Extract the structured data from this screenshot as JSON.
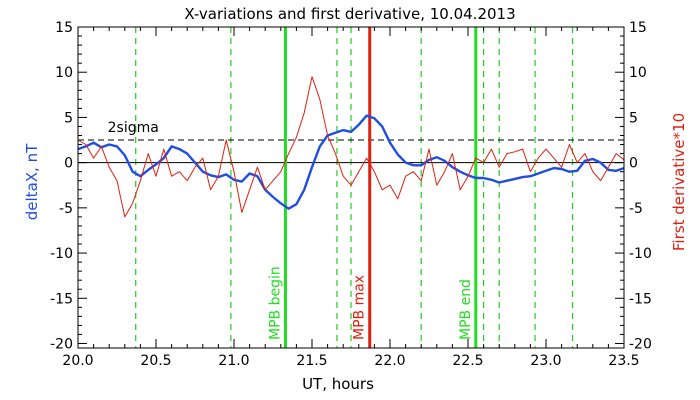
{
  "chart_data": {
    "type": "line",
    "title": "X-variations and first derivative, 10.04.2013",
    "xlabel": "UT, hours",
    "ylabel_left": "deltaX, nT",
    "ylabel_right": "First derivative*10",
    "xlim": [
      20.0,
      23.5
    ],
    "ylim": [
      -20.5,
      15
    ],
    "x_ticks": [
      "20.0",
      "20.5",
      "21.0",
      "21.5",
      "22.0",
      "22.5",
      "23.0",
      "23.5"
    ],
    "x_tick_values": [
      20.0,
      20.5,
      21.0,
      21.5,
      22.0,
      22.5,
      23.0,
      23.5
    ],
    "y_ticks": [
      "15",
      "10",
      "5",
      "0",
      "-5",
      "-10",
      "-15",
      "-20"
    ],
    "y_tick_values": [
      15,
      10,
      5,
      0,
      -5,
      -10,
      -15,
      -20
    ],
    "threshold": {
      "label": "2sigma",
      "value": 2.5
    },
    "colors": {
      "deltaX": "#1f4ee0",
      "derivative": "#e0200f",
      "guides": "#22cc22",
      "mpb_max": "#e0200f"
    },
    "dashed_guides_x": [
      20.37,
      20.98,
      21.66,
      21.75,
      22.2,
      22.6,
      22.7,
      22.93,
      23.17
    ],
    "markers": [
      {
        "label": "MPB begin",
        "x": 21.33,
        "color": "#22dd22"
      },
      {
        "label": "MPB max",
        "x": 21.87,
        "color": "#e0200f"
      },
      {
        "label": "MPB end",
        "x": 22.55,
        "color": "#22dd22"
      }
    ],
    "series": [
      {
        "key": "deltaX",
        "x": [
          20.0,
          20.05,
          20.1,
          20.15,
          20.2,
          20.25,
          20.3,
          20.35,
          20.4,
          20.45,
          20.5,
          20.55,
          20.6,
          20.65,
          20.7,
          20.75,
          20.8,
          20.85,
          20.9,
          20.95,
          21.0,
          21.05,
          21.1,
          21.15,
          21.2,
          21.25,
          21.3,
          21.35,
          21.4,
          21.45,
          21.5,
          21.55,
          21.6,
          21.65,
          21.7,
          21.75,
          21.8,
          21.85,
          21.9,
          21.95,
          22.0,
          22.05,
          22.1,
          22.15,
          22.2,
          22.25,
          22.3,
          22.35,
          22.4,
          22.45,
          22.5,
          22.55,
          22.6,
          22.65,
          22.7,
          22.75,
          22.8,
          22.85,
          22.9,
          22.95,
          23.0,
          23.05,
          23.1,
          23.15,
          23.2,
          23.25,
          23.3,
          23.35,
          23.4,
          23.45,
          23.5
        ],
        "values": [
          1.5,
          1.8,
          2.2,
          1.7,
          2.0,
          1.8,
          0.8,
          -1.0,
          -1.5,
          -0.8,
          -0.2,
          0.5,
          1.8,
          1.5,
          1.0,
          0.0,
          -1.0,
          -1.4,
          -1.6,
          -1.3,
          -1.9,
          -2.1,
          -1.2,
          -1.5,
          -3.0,
          -3.8,
          -4.5,
          -5.1,
          -4.6,
          -3.0,
          -0.5,
          1.8,
          3.0,
          3.3,
          3.6,
          3.4,
          4.2,
          5.2,
          4.9,
          4.0,
          2.2,
          0.9,
          0.0,
          -0.3,
          -0.3,
          0.3,
          0.6,
          0.2,
          -0.5,
          -1.0,
          -1.4,
          -1.7,
          -1.7,
          -1.9,
          -2.2,
          -2.0,
          -1.8,
          -1.6,
          -1.5,
          -1.2,
          -0.9,
          -0.6,
          -0.7,
          -1.0,
          -0.9,
          0.2,
          0.4,
          0.0,
          -0.8,
          -0.9,
          -0.6
        ]
      },
      {
        "key": "derivative",
        "x": [
          20.0,
          20.05,
          20.1,
          20.15,
          20.2,
          20.25,
          20.3,
          20.35,
          20.4,
          20.45,
          20.5,
          20.55,
          20.6,
          20.65,
          20.7,
          20.75,
          20.8,
          20.85,
          20.9,
          20.95,
          21.0,
          21.05,
          21.1,
          21.15,
          21.2,
          21.25,
          21.3,
          21.35,
          21.4,
          21.45,
          21.5,
          21.55,
          21.6,
          21.65,
          21.7,
          21.75,
          21.8,
          21.85,
          21.9,
          21.95,
          22.0,
          22.05,
          22.1,
          22.15,
          22.2,
          22.25,
          22.3,
          22.35,
          22.4,
          22.45,
          22.5,
          22.55,
          22.6,
          22.65,
          22.7,
          22.75,
          22.8,
          22.85,
          22.9,
          22.95,
          23.0,
          23.05,
          23.1,
          23.15,
          23.2,
          23.25,
          23.3,
          23.35,
          23.4,
          23.45,
          23.5
        ],
        "values": [
          2.5,
          2.0,
          0.5,
          1.8,
          -0.5,
          -2.0,
          -6.0,
          -4.5,
          -2.0,
          1.0,
          -1.5,
          1.5,
          -1.5,
          -1.0,
          -2.0,
          -0.5,
          0.5,
          -3.0,
          -1.5,
          2.5,
          -1.0,
          -5.5,
          -3.0,
          -0.5,
          -3.0,
          -2.0,
          -1.0,
          1.0,
          2.8,
          5.5,
          9.5,
          7.0,
          3.0,
          1.0,
          -1.5,
          -2.5,
          -1.0,
          0.5,
          -1.0,
          -3.0,
          -2.5,
          -4.0,
          -1.5,
          -1.0,
          -2.0,
          1.5,
          -2.5,
          -1.0,
          1.0,
          -3.0,
          -1.5,
          0.5,
          0.0,
          1.5,
          -0.5,
          1.0,
          1.2,
          1.5,
          -1.0,
          0.5,
          1.5,
          0.5,
          -0.5,
          2.0,
          0.0,
          1.0,
          -1.0,
          -2.0,
          -0.5,
          1.0,
          0.3
        ]
      }
    ]
  }
}
